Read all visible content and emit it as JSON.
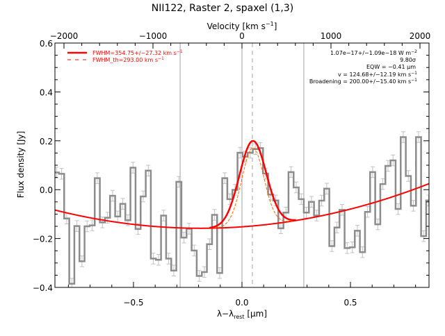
{
  "chart_data": {
    "type": "line",
    "title": "NII122, Raster 2, spaxel (1,3)",
    "xlabel": "λ−λ",
    "xlabel_sub": "rest",
    "xlabel_unit": " [µm]",
    "ylabel": "Flux density [Jy]",
    "top_axis_label": "Velocity [km s",
    "top_axis_label_sup": "−1",
    "top_axis_label_end": "]",
    "xlim": [
      -0.862,
      0.862
    ],
    "ylim": [
      -0.4,
      0.6
    ],
    "x_ticks": [
      -0.5,
      0.0,
      0.5
    ],
    "x_tick_labels": [
      "−0.5",
      "0.0",
      "0.5"
    ],
    "y_ticks": [
      -0.4,
      -0.2,
      0.0,
      0.2,
      0.4,
      0.6
    ],
    "y_tick_labels": [
      "−0.4",
      "−0.2",
      "0.0",
      "0.2",
      "0.4",
      "0.6"
    ],
    "velocity_ticks": [
      -2000,
      -1000,
      0,
      1000,
      2000
    ],
    "velocity_tick_labels": [
      "−2000",
      "−1000",
      "0",
      "1000",
      "2000"
    ],
    "grid": false,
    "spectrum": {
      "style": "histogram",
      "color": "#8c8c8c",
      "error_color": "#c0c0c0",
      "bin_first_edge": -0.843,
      "bin_width": 0.0235,
      "error": 0.022,
      "values": [
        0.07,
        0.065,
        -0.118,
        -0.385,
        -0.149,
        -0.293,
        -0.15,
        -0.146,
        0.047,
        -0.134,
        -0.115,
        -0.025,
        -0.11,
        -0.058,
        -0.125,
        0.09,
        -0.161,
        -0.028,
        0.078,
        -0.282,
        -0.287,
        -0.106,
        -0.282,
        -0.331,
        0.032,
        -0.196,
        -0.16,
        -0.249,
        -0.353,
        -0.337,
        -0.223,
        -0.103,
        -0.341,
        0.047,
        -0.039,
        -0.001,
        0.151,
        0.135,
        0.151,
        0.166,
        0.17,
        0.066,
        -0.02,
        -0.044,
        -0.158,
        -0.094,
        0.072,
        0.009,
        -0.039,
        -0.094,
        -0.05,
        -0.106,
        -0.045,
        0.004,
        -0.231,
        -0.155,
        -0.083,
        -0.239,
        -0.236,
        -0.168,
        -0.256,
        -0.091,
        0.072,
        -0.142,
        0.023,
        0.097,
        0.12,
        -0.079,
        0.215,
        0.056,
        -0.066,
        0.215,
        -0.19,
        -0.044
      ]
    },
    "baseline": {
      "type": "quadratic",
      "center": -0.19,
      "min": -0.158,
      "curvature": 0.165,
      "color": "#ff0000"
    },
    "fit": {
      "center": 0.05,
      "amplitude": 0.348,
      "fwhm": 0.1455,
      "color": "#ff0000"
    },
    "fit_theoretical": {
      "center": 0.05,
      "amplitude": 0.32,
      "fwhm": 0.12,
      "color": "#ff6600"
    },
    "vertical_lines": {
      "solid": [
        -0.285,
        0.0,
        0.285
      ],
      "dashed": [
        0.048
      ],
      "color": "#a0a0a0"
    },
    "legend": {
      "placement": "top-left",
      "entries": [
        {
          "label": "FWHM=354.75+/−27.32 km s",
          "sup": "−1",
          "style": "solid",
          "color": "#ff0000"
        },
        {
          "label": "FWHM_th=293.00 km s",
          "sup": "−1",
          "style": "dashed",
          "color": "#ff0000"
        }
      ]
    },
    "annotations": [
      {
        "text": "1.07e−17+/−1.09e−18 W m",
        "sup": "−2"
      },
      {
        "text": "9.80σ",
        "sup": ""
      },
      {
        "text": "EQW = −0.41 µm",
        "sup": ""
      },
      {
        "text": "v = 124.68+/−12.19 km s",
        "sup": "−1"
      },
      {
        "text": "Broadening = 200.00+/−15.40 km s",
        "sup": "−1"
      }
    ]
  }
}
